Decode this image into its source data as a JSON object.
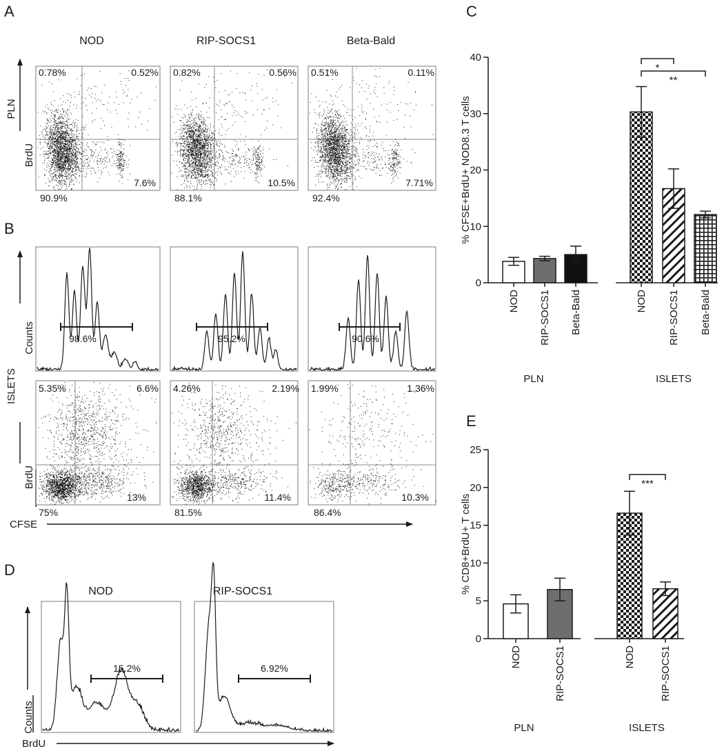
{
  "panel_labels": {
    "a": "A",
    "b": "B",
    "c": "C",
    "d": "D",
    "e": "E"
  },
  "col_titles": [
    "NOD",
    "RIP-SOCS1",
    "Beta-Bald"
  ],
  "d_titles": [
    "NOD",
    "RIP-SOCS1"
  ],
  "axis_text": {
    "pln": "PLN",
    "brdu": "BrdU",
    "islets": "ISLETS",
    "counts": "Counts",
    "cfse": "CFSE"
  },
  "panel_a": [
    {
      "ul": "0.78%",
      "ur": "0.52%",
      "lr": "7.6%",
      "ll": "90.9%"
    },
    {
      "ul": "0.82%",
      "ur": "0.56%",
      "lr": "10.5%",
      "ll": "88.1%"
    },
    {
      "ul": "0.51%",
      "ur": "0.11%",
      "lr": "7.71%",
      "ll": "92.4%"
    }
  ],
  "panel_b_hist": [
    "98.6%",
    "95.2%",
    "90.6%"
  ],
  "panel_b_dot": [
    {
      "ul": "5.35%",
      "ur": "6.6%",
      "lr": "13%",
      "ll": "75%"
    },
    {
      "ul": "4.26%",
      "ur": "2.19%",
      "lr": "11.4%",
      "ll": "81.5%"
    },
    {
      "ul": "1.99%",
      "ur": "1.36%",
      "lr": "10.3%",
      "ll": "86.4%"
    }
  ],
  "panel_d": [
    "15.2%",
    "6.92%"
  ],
  "chart_data": [
    {
      "type": "bar",
      "panel": "C",
      "ylabel": "% CFSE+BrdU+ NOD8.3 T cells",
      "ylim": [
        0,
        40
      ],
      "yticks": [
        0,
        10,
        20,
        30,
        40
      ],
      "groups": [
        "PLN",
        "ISLETS"
      ],
      "categories": [
        "NOD",
        "RIP-SOCS1",
        "Beta-Bald",
        "NOD",
        "RIP-SOCS1",
        "Beta-Bald"
      ],
      "values": [
        3.8,
        4.3,
        5.0,
        30.3,
        16.7,
        12.1
      ],
      "errors": [
        0.7,
        0.4,
        1.5,
        4.5,
        3.5,
        0.6
      ],
      "fills": [
        "white",
        "gray",
        "black",
        "checker",
        "diag",
        "grid"
      ],
      "significance": [
        {
          "from": 3,
          "to": 4,
          "label": "*"
        },
        {
          "from": 3,
          "to": 5,
          "label": "**"
        }
      ]
    },
    {
      "type": "bar",
      "panel": "E",
      "ylabel": "% CD8+BrdU+ T cells",
      "ylim": [
        0,
        25
      ],
      "yticks": [
        0,
        5,
        10,
        15,
        20,
        25
      ],
      "groups": [
        "PLN",
        "ISLETS"
      ],
      "categories": [
        "NOD",
        "RIP-SOCS1",
        "NOD",
        "RIP-SOCS1"
      ],
      "values": [
        4.6,
        6.5,
        16.6,
        6.6
      ],
      "errors": [
        1.2,
        1.5,
        2.9,
        0.9
      ],
      "fills": [
        "white",
        "gray",
        "checker",
        "diag"
      ],
      "significance": [
        {
          "from": 2,
          "to": 3,
          "label": "***"
        }
      ]
    }
  ]
}
